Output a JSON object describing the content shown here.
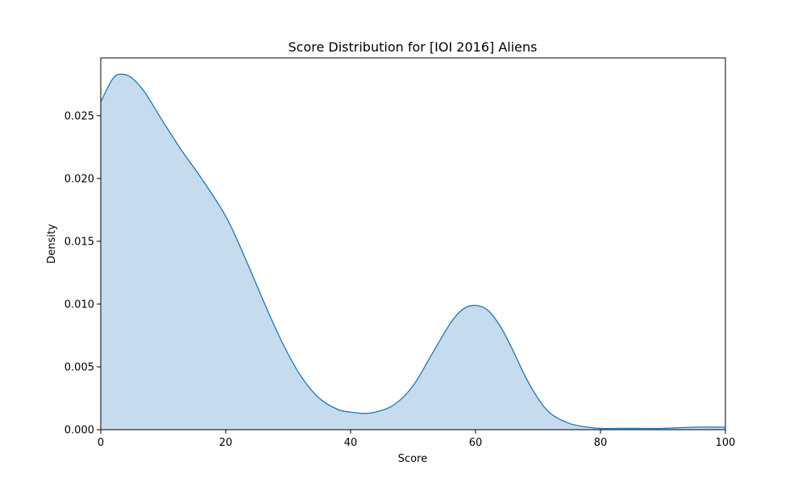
{
  "chart_data": {
    "type": "area",
    "title": "Score Distribution for [IOI 2016] Aliens",
    "xlabel": "Score",
    "ylabel": "Density",
    "xlim": [
      0,
      100
    ],
    "ylim": [
      0,
      0.0296
    ],
    "x_ticks": [
      {
        "value": 0,
        "label": "0"
      },
      {
        "value": 20,
        "label": "20"
      },
      {
        "value": 40,
        "label": "40"
      },
      {
        "value": 60,
        "label": "60"
      },
      {
        "value": 80,
        "label": "80"
      },
      {
        "value": 100,
        "label": "100"
      }
    ],
    "y_ticks": [
      {
        "value": 0.0,
        "label": "0.000"
      },
      {
        "value": 0.005,
        "label": "0.005"
      },
      {
        "value": 0.01,
        "label": "0.010"
      },
      {
        "value": 0.015,
        "label": "0.015"
      },
      {
        "value": 0.02,
        "label": "0.020"
      },
      {
        "value": 0.025,
        "label": "0.025"
      }
    ],
    "grid": false,
    "series": [
      {
        "x": [
          0,
          2,
          3.5,
          5,
          7,
          10,
          13,
          16,
          20,
          23,
          26,
          29,
          32,
          35,
          38,
          40,
          42,
          44,
          47,
          50,
          53,
          56,
          58,
          60,
          62,
          64,
          66,
          68,
          70,
          72,
          75,
          78,
          80,
          83,
          86,
          90,
          95,
          100
        ],
        "y": [
          0.0261,
          0.028,
          0.0283,
          0.028,
          0.0269,
          0.0245,
          0.0222,
          0.0201,
          0.017,
          0.0138,
          0.0103,
          0.007,
          0.0043,
          0.0025,
          0.0016,
          0.0014,
          0.0013,
          0.0014,
          0.002,
          0.0035,
          0.006,
          0.0085,
          0.0096,
          0.0099,
          0.0095,
          0.0082,
          0.0063,
          0.0042,
          0.0025,
          0.0013,
          0.0005,
          0.0002,
          0.0001,
          0.0001,
          0.0001,
          0.0001,
          0.0002,
          0.0002
        ]
      }
    ],
    "colors": {
      "line": "#1f77b4",
      "fill": "#c6dbed",
      "axes": "#000000"
    }
  }
}
